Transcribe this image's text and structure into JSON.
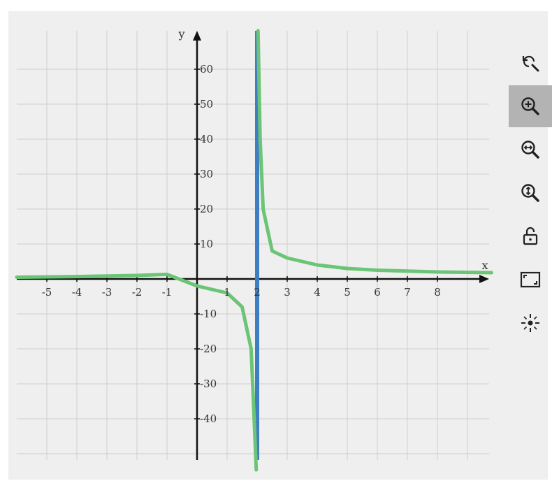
{
  "chart_data": {
    "type": "line",
    "title": "",
    "xlabel": "x",
    "ylabel": "y",
    "xlim": [
      -6.1,
      9.8
    ],
    "ylim": [
      -52,
      70
    ],
    "x_ticks": [
      -5,
      -4,
      -3,
      -2,
      -1,
      1,
      2,
      3,
      4,
      5,
      6,
      7,
      8
    ],
    "y_ticks": [
      -40,
      -30,
      -20,
      -10,
      10,
      20,
      30,
      40,
      50,
      60
    ],
    "grid": true,
    "series": [
      {
        "kind": "curve",
        "color": "#6cc576",
        "points": [
          {
            "x": -6.0,
            "y": 0.5
          },
          {
            "x": -4.0,
            "y": 0.67
          },
          {
            "x": -2.0,
            "y": 1.0
          },
          {
            "x": -1.0,
            "y": 1.33
          },
          {
            "x": 0.0,
            "y": -2.0
          },
          {
            "x": 1.0,
            "y": -4.0
          },
          {
            "x": 1.5,
            "y": -8.0
          },
          {
            "x": 1.8,
            "y": -20.0
          },
          {
            "x": 1.9,
            "y": -40.0
          },
          {
            "x": 2.1,
            "y": 40.0
          },
          {
            "x": 2.2,
            "y": 20.0
          },
          {
            "x": 2.5,
            "y": 8.0
          },
          {
            "x": 3.0,
            "y": 6.0
          },
          {
            "x": 4.0,
            "y": 4.0
          },
          {
            "x": 5.0,
            "y": 3.0
          },
          {
            "x": 6.0,
            "y": 2.5
          },
          {
            "x": 8.0,
            "y": 2.0
          },
          {
            "x": 9.8,
            "y": 1.8
          }
        ]
      },
      {
        "kind": "vertical-line",
        "color": "#3f7fc1",
        "x": 2
      }
    ]
  },
  "toolbar": {
    "items": [
      {
        "icon": "zoom-reset-icon",
        "active": false
      },
      {
        "icon": "zoom-in-icon",
        "active": true
      },
      {
        "icon": "zoom-horizontal-icon",
        "active": false
      },
      {
        "icon": "zoom-vertical-icon",
        "active": false
      },
      {
        "icon": "unlock-icon",
        "active": false
      },
      {
        "icon": "fullscreen-icon",
        "active": false
      },
      {
        "icon": "pan-icon",
        "active": false
      }
    ]
  }
}
